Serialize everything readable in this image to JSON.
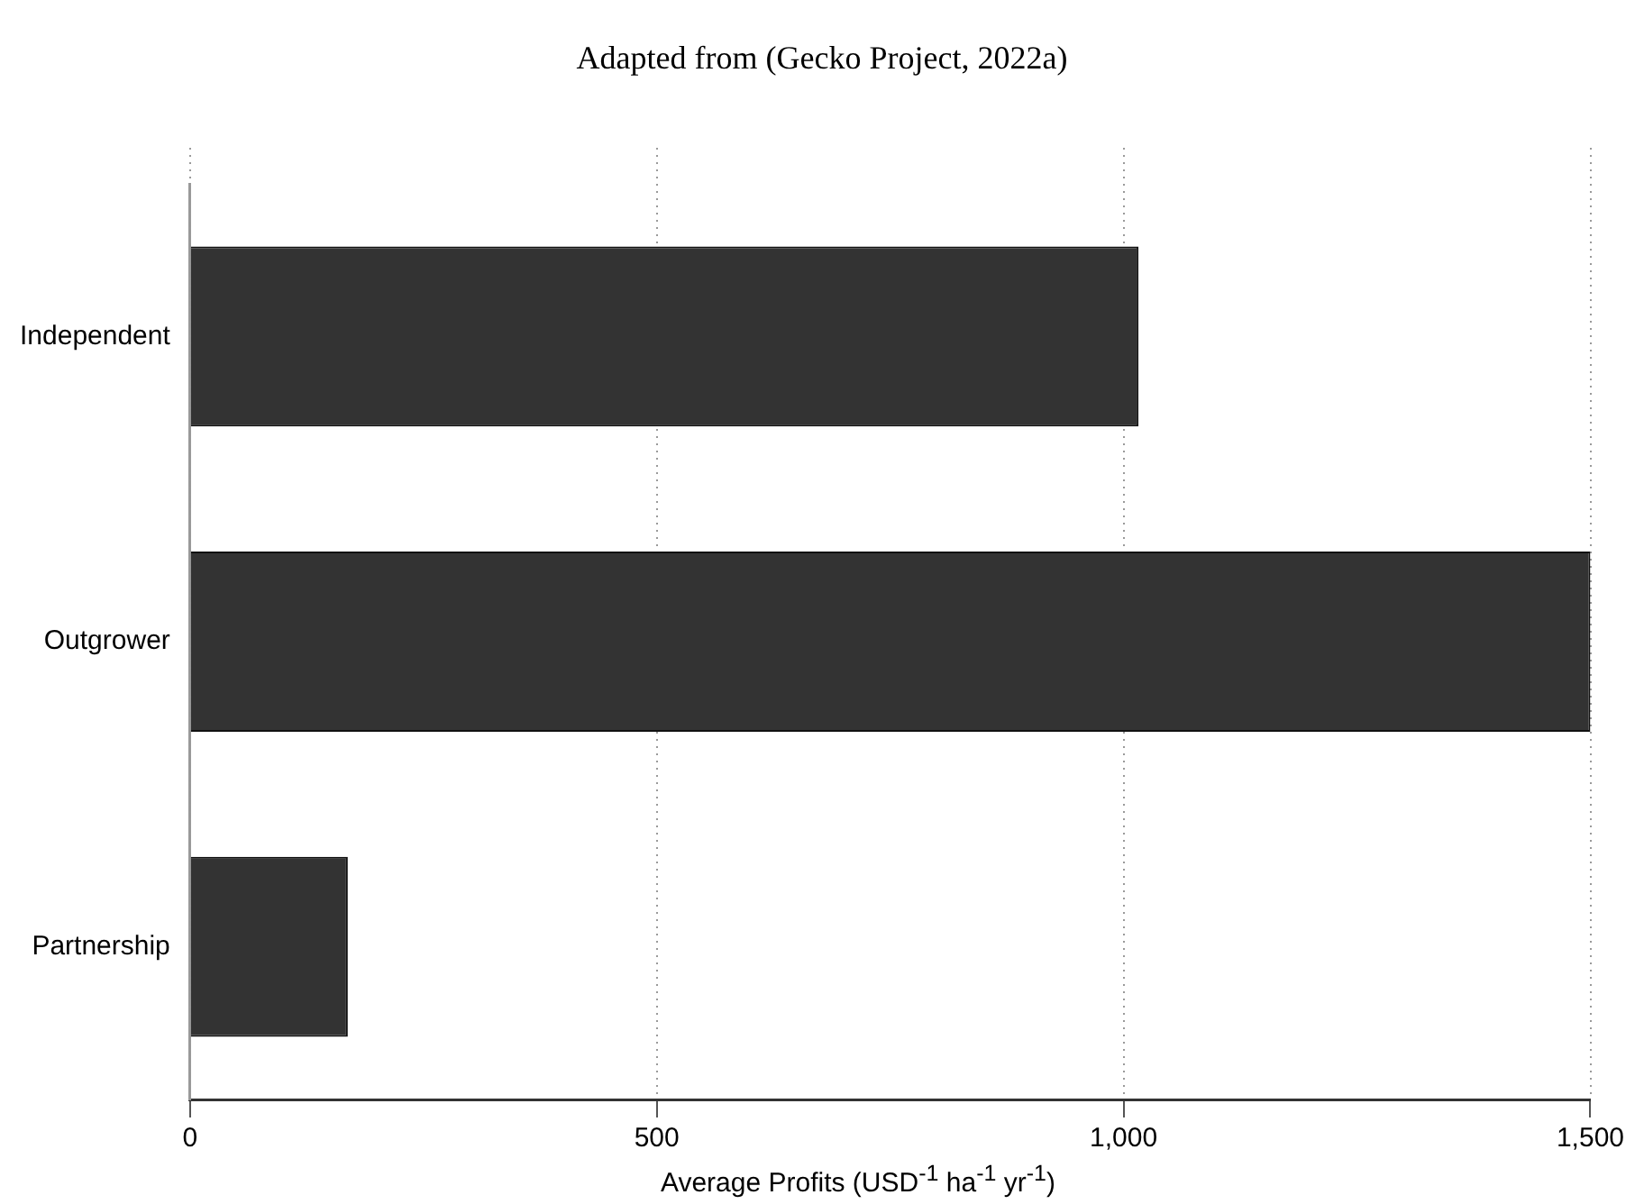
{
  "chart_data": {
    "type": "bar",
    "orientation": "horizontal",
    "title": "Adapted from (Gecko Project, 2022a)",
    "xlabel": "Average Profits (USD$^{-1}$ ha$^{-1}$  yr$^{-1}$)",
    "categories": [
      "Independent",
      "Outgrower",
      "Partnership"
    ],
    "values": [
      1016,
      1500,
      169
    ],
    "color": "#333333",
    "xlim": [
      0,
      1500
    ],
    "xticks": [
      0,
      500,
      {
        "value": 1000,
        "label": "1,000"
      },
      {
        "value": 1500,
        "label": "1,500"
      }
    ],
    "grid": "x"
  }
}
